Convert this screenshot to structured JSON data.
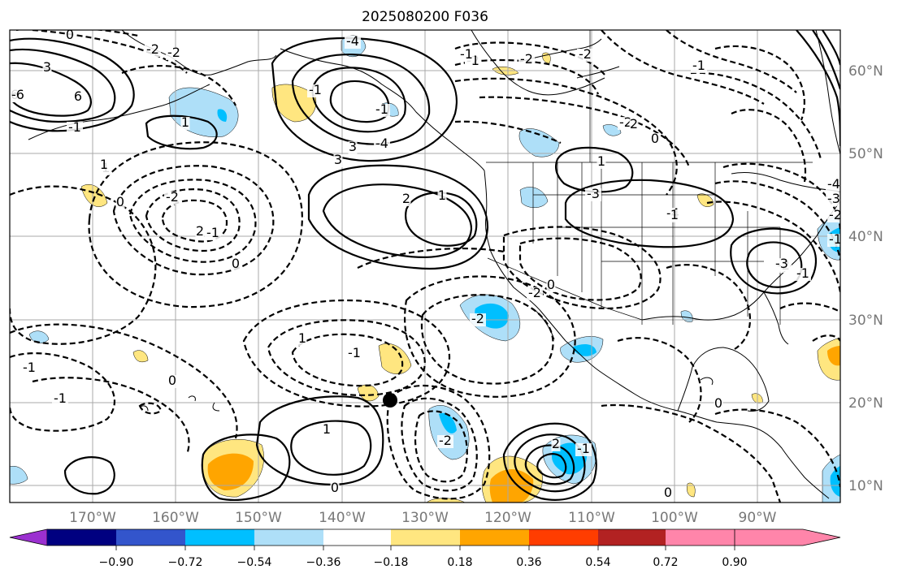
{
  "title": "2025080200 F036",
  "lon_ticks": [
    "170°W",
    "160°W",
    "150°W",
    "140°W",
    "130°W",
    "120°W",
    "110°W",
    "100°W",
    "90°W"
  ],
  "lat_ticks": [
    "60°N",
    "50°N",
    "40°N",
    "30°N",
    "20°N",
    "10°N"
  ],
  "colorbar": {
    "ticks": [
      "−0.90",
      "−0.72",
      "−0.54",
      "−0.36",
      "−0.18",
      "0.18",
      "0.36",
      "0.54",
      "0.72",
      "0.90"
    ],
    "colors": [
      "#9b30d0",
      "#000080",
      "#3355cc",
      "#00bfff",
      "#aedff8",
      "#ffffff",
      "#ffe680",
      "#ffa500",
      "#ff3d00",
      "#b22222",
      "#ff85aa"
    ]
  },
  "contour_labels": [
    "0",
    "-2",
    "-2",
    "3",
    "6",
    "-1",
    "1",
    "1",
    "-4",
    "-1",
    "-1",
    "-6",
    "6",
    "-4",
    "3",
    "3",
    "2",
    "1",
    "-2",
    "0",
    "-1",
    "0",
    "1",
    "-3",
    "-4",
    "2",
    "-2",
    "2",
    "1",
    "0",
    "-1",
    "-2",
    "-1",
    "-2",
    "-2",
    "-1",
    "-2",
    "0",
    "-1",
    "-1",
    "1",
    "0",
    "-2",
    "2",
    "-1",
    "0",
    "0",
    "-2",
    "1",
    "-2",
    "-3",
    "0",
    "-1",
    "1",
    "-1",
    "-1",
    "-2",
    "-3",
    "-4"
  ]
}
